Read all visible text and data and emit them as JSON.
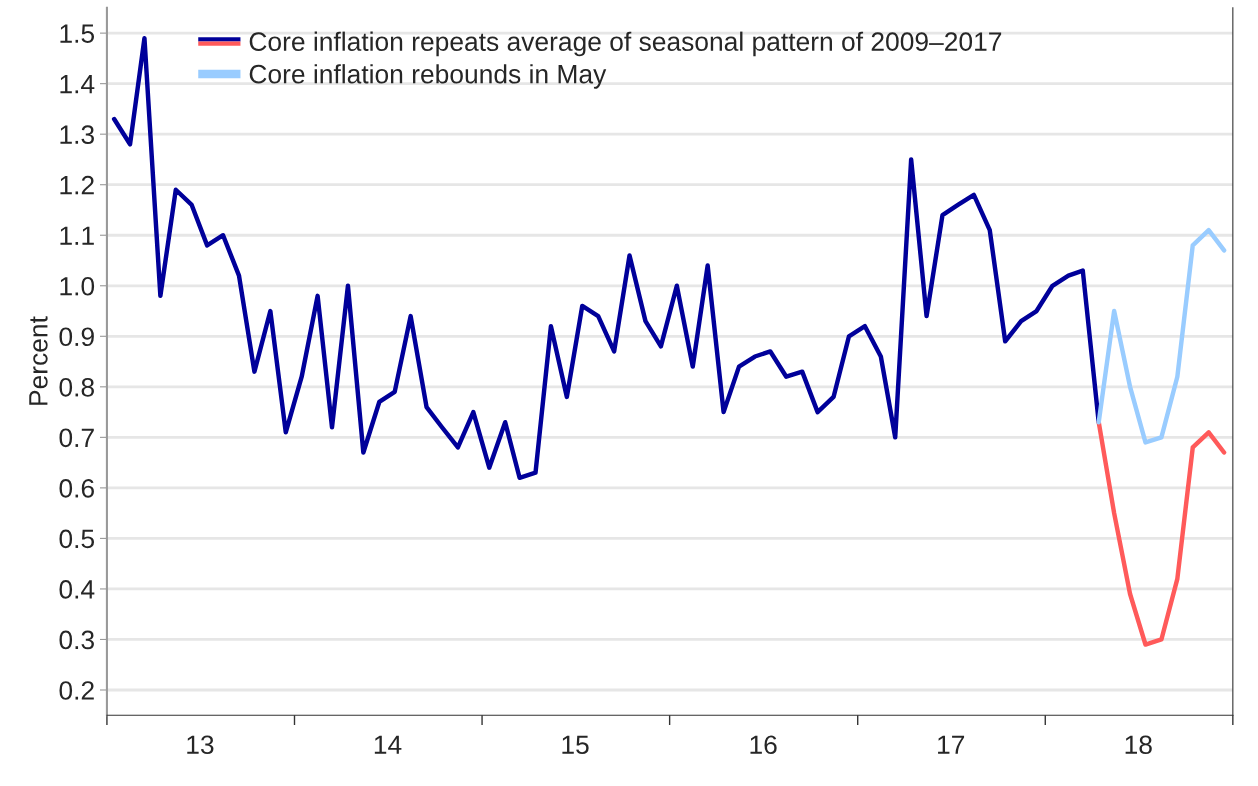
{
  "chart_data": {
    "type": "line",
    "ylabel": "Percent",
    "xlim": [
      "2013-01-01",
      "2019-01-01"
    ],
    "xticks": [
      {
        "value": "2013-01-01",
        "label": null
      },
      {
        "value": "2013-07-01",
        "label": "13"
      },
      {
        "value": "2014-01-01",
        "label": null
      },
      {
        "value": "2014-07-01",
        "label": "14"
      },
      {
        "value": "2015-01-01",
        "label": null
      },
      {
        "value": "2015-07-01",
        "label": "15"
      },
      {
        "value": "2016-01-01",
        "label": null
      },
      {
        "value": "2016-07-01",
        "label": "16"
      },
      {
        "value": "2017-01-01",
        "label": null
      },
      {
        "value": "2017-07-01",
        "label": "17"
      },
      {
        "value": "2018-01-01",
        "label": null
      },
      {
        "value": "2018-07-01",
        "label": "18"
      },
      {
        "value": "2019-01-01",
        "label": null
      }
    ],
    "ylim": [
      0.15,
      1.55
    ],
    "yticks": [
      {
        "value": 0.2,
        "label": "0.2"
      },
      {
        "value": 0.3,
        "label": "0.3"
      },
      {
        "value": 0.4,
        "label": "0.4"
      },
      {
        "value": 0.5,
        "label": "0.5"
      },
      {
        "value": 0.6,
        "label": "0.6"
      },
      {
        "value": 0.7,
        "label": "0.7"
      },
      {
        "value": 0.8,
        "label": "0.8"
      },
      {
        "value": 0.9,
        "label": "0.9"
      },
      {
        "value": 1.0,
        "label": "1.0"
      },
      {
        "value": 1.1,
        "label": "1.1"
      },
      {
        "value": 1.2,
        "label": "1.2"
      },
      {
        "value": 1.3,
        "label": "1.3"
      },
      {
        "value": 1.4,
        "label": "1.4"
      },
      {
        "value": 1.5,
        "label": "1.5"
      }
    ],
    "grid": "y",
    "legend": "top left",
    "line_style": "solid",
    "marker": "none",
    "series": [
      {
        "color": "#00009a",
        "x": [
          "2013-01-15",
          "2013-02-15",
          "2013-03-15",
          "2013-04-15",
          "2013-05-15",
          "2013-06-15",
          "2013-07-15",
          "2013-08-15",
          "2013-09-15",
          "2013-10-15",
          "2013-11-15",
          "2013-12-15",
          "2014-01-15",
          "2014-02-15",
          "2014-03-15",
          "2014-04-15",
          "2014-05-15",
          "2014-06-15",
          "2014-07-15",
          "2014-08-15",
          "2014-09-15",
          "2014-10-15",
          "2014-11-15",
          "2014-12-15",
          "2015-01-15",
          "2015-02-15",
          "2015-03-15",
          "2015-04-15",
          "2015-05-15",
          "2015-06-15",
          "2015-07-15",
          "2015-08-15",
          "2015-09-15",
          "2015-10-15",
          "2015-11-15",
          "2015-12-15",
          "2016-01-15",
          "2016-02-15",
          "2016-03-15",
          "2016-04-15",
          "2016-05-15",
          "2016-06-15",
          "2016-07-15",
          "2016-08-15",
          "2016-09-15",
          "2016-10-15",
          "2016-11-15",
          "2016-12-15",
          "2017-01-15",
          "2017-02-15",
          "2017-03-15",
          "2017-04-15",
          "2017-05-15",
          "2017-06-15",
          "2017-07-15",
          "2017-08-15",
          "2017-09-15",
          "2017-10-15",
          "2017-11-15",
          "2017-12-15",
          "2018-01-15",
          "2018-02-15",
          "2018-03-15",
          "2018-04-15"
        ],
        "values": [
          1.33,
          1.28,
          1.49,
          0.98,
          1.19,
          1.16,
          1.08,
          1.1,
          1.02,
          0.83,
          0.95,
          0.71,
          0.82,
          0.98,
          0.72,
          1.0,
          0.67,
          0.77,
          0.79,
          0.94,
          0.76,
          0.72,
          0.68,
          0.75,
          0.64,
          0.73,
          0.62,
          0.63,
          0.92,
          0.78,
          0.96,
          0.94,
          0.87,
          1.06,
          0.93,
          0.88,
          1.0,
          0.84,
          1.04,
          0.75,
          0.84,
          0.86,
          0.87,
          0.82,
          0.83,
          0.75,
          0.78,
          0.9,
          0.92,
          0.86,
          0.7,
          1.25,
          0.94,
          1.14,
          1.16,
          1.18,
          1.11,
          0.89,
          0.93,
          0.95,
          1.0,
          1.02,
          1.03,
          0.73
        ]
      },
      {
        "name": "Core inflation repeats average of seasonal pattern of 2009–2017",
        "color": "#ff5a5a",
        "x": [
          "2018-04-15",
          "2018-05-15",
          "2018-06-15",
          "2018-07-15",
          "2018-08-15",
          "2018-09-15",
          "2018-10-15",
          "2018-11-15",
          "2018-12-15"
        ],
        "values": [
          0.73,
          0.55,
          0.39,
          0.29,
          0.3,
          0.42,
          0.68,
          0.71,
          0.67
        ]
      },
      {
        "name": "Core inflation rebounds in May",
        "color": "#99ccff",
        "x": [
          "2018-04-15",
          "2018-05-15",
          "2018-06-15",
          "2018-07-15",
          "2018-08-15",
          "2018-09-15",
          "2018-10-15",
          "2018-11-15",
          "2018-12-15"
        ],
        "values": [
          0.73,
          0.95,
          0.8,
          0.69,
          0.7,
          0.82,
          1.08,
          1.11,
          1.07
        ]
      }
    ]
  }
}
